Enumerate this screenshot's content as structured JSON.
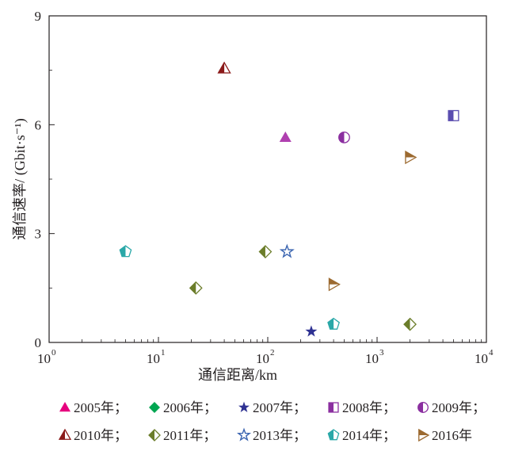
{
  "chart_data": {
    "type": "scatter",
    "title": "",
    "xlabel": "通信距离/km",
    "ylabel": "通信速率/ (Gbit·s⁻¹)",
    "xscale": "log",
    "xlim": [
      1,
      10000
    ],
    "ylim": [
      0,
      9
    ],
    "grid": false,
    "legend_position": "bottom",
    "x_ticks": [
      {
        "value": 1,
        "base": "10",
        "exp": "0"
      },
      {
        "value": 10,
        "base": "10",
        "exp": "1"
      },
      {
        "value": 100,
        "base": "10",
        "exp": "2"
      },
      {
        "value": 1000,
        "base": "10",
        "exp": "3"
      },
      {
        "value": 10000,
        "base": "10",
        "exp": "4"
      }
    ],
    "y_ticks": [
      {
        "value": 0,
        "label": "0"
      },
      {
        "value": 3,
        "label": "3"
      },
      {
        "value": 6,
        "label": "6"
      },
      {
        "value": 9,
        "label": "9"
      }
    ],
    "series": [
      {
        "name": "2005年；",
        "marker": "triangle-up",
        "color": "#b040b0",
        "legend_color": "#e6007e",
        "points": [
          {
            "x": 145,
            "y": 5.65
          }
        ]
      },
      {
        "name": "2006年；",
        "marker": "diamond",
        "color": "#00a651",
        "legend_color": "#00a651",
        "points": []
      },
      {
        "name": "2007年；",
        "marker": "star",
        "color": "#2e3192",
        "legend_color": "#2e3192",
        "points": [
          {
            "x": 250,
            "y": 0.3
          }
        ]
      },
      {
        "name": "2008年；",
        "marker": "square-half",
        "color": "#5b4eb0",
        "legend_color": "#8b2fa0",
        "points": [
          {
            "x": 5000,
            "y": 6.25
          }
        ]
      },
      {
        "name": "2009年；",
        "marker": "circle-half",
        "color": "#8b2fa0",
        "legend_color": "#8b2fa0",
        "points": [
          {
            "x": 500,
            "y": 5.65
          }
        ]
      },
      {
        "name": "2010年；",
        "marker": "triangle-half",
        "color": "#8b1a1a",
        "legend_color": "#8b1a1a",
        "points": [
          {
            "x": 40,
            "y": 7.55
          }
        ]
      },
      {
        "name": "2011年；",
        "marker": "diamond-half",
        "color": "#6b7d2a",
        "legend_color": "#6b7d2a",
        "points": [
          {
            "x": 22,
            "y": 1.5
          },
          {
            "x": 95,
            "y": 2.5
          },
          {
            "x": 2000,
            "y": 0.5
          }
        ]
      },
      {
        "name": "2013年；",
        "marker": "star-outline",
        "color": "#3a64b0",
        "legend_color": "#3a64b0",
        "points": [
          {
            "x": 150,
            "y": 2.5
          }
        ]
      },
      {
        "name": "2014年；",
        "marker": "pentagon-half",
        "color": "#2aa8a8",
        "legend_color": "#2aa8a8",
        "points": [
          {
            "x": 5,
            "y": 2.5
          },
          {
            "x": 400,
            "y": 0.5
          }
        ]
      },
      {
        "name": "2016年",
        "marker": "triangle-right-half",
        "color": "#9c6a30",
        "legend_color": "#9c6a30",
        "points": [
          {
            "x": 2000,
            "y": 5.1
          },
          {
            "x": 400,
            "y": 1.6
          }
        ]
      }
    ]
  }
}
